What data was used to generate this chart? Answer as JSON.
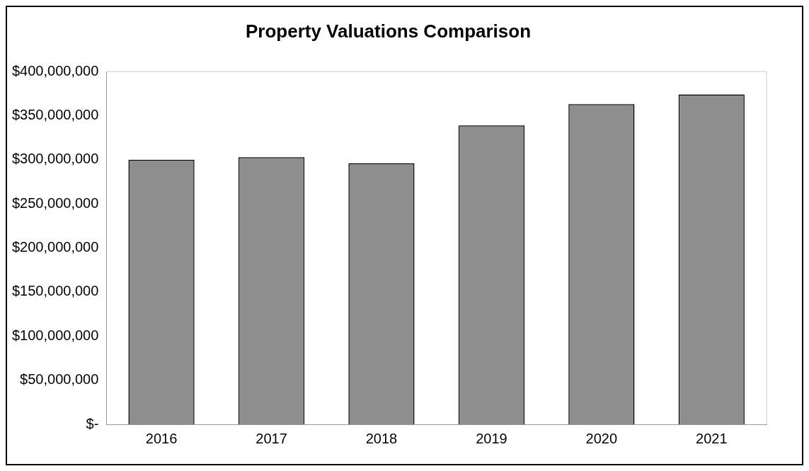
{
  "chart_data": {
    "type": "bar",
    "title": "Property Valuations Comparison",
    "categories": [
      "2016",
      "2017",
      "2018",
      "2019",
      "2020",
      "2021"
    ],
    "values": [
      300000000,
      303000000,
      296000000,
      339000000,
      363000000,
      374000000
    ],
    "color": "#8e8e8e",
    "ylim": [
      0,
      400000000
    ],
    "yticks": [
      {
        "value": 0,
        "label": "$-"
      },
      {
        "value": 50000000,
        "label": "$50,000,000"
      },
      {
        "value": 100000000,
        "label": "$100,000,000"
      },
      {
        "value": 150000000,
        "label": "$150,000,000"
      },
      {
        "value": 200000000,
        "label": "$200,000,000"
      },
      {
        "value": 250000000,
        "label": "$250,000,000"
      },
      {
        "value": 300000000,
        "label": "$300,000,000"
      },
      {
        "value": 350000000,
        "label": "$350,000,000"
      },
      {
        "value": 400000000,
        "label": "$400,000,000"
      }
    ],
    "grid": false,
    "legend": false
  }
}
